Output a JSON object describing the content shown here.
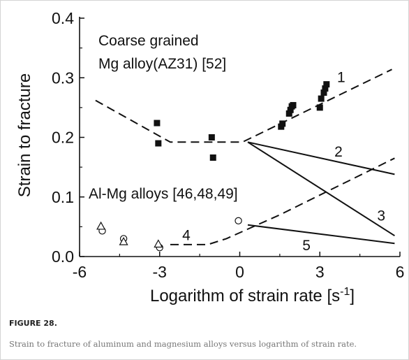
{
  "figure": {
    "label": "FIGURE 28.",
    "caption": "Strain to fracture of aluminum and magnesium alloys versus logarithm of strain rate."
  },
  "chart_data": {
    "type": "scatter",
    "xlabel_text": "Logarithm of strain rate [s",
    "xlabel_sup": "-1",
    "xlabel_end": "]",
    "ylabel": "Strain to fracture",
    "xlim": [
      -6,
      6
    ],
    "ylim": [
      0,
      0.4
    ],
    "x_ticks": [
      -6,
      -3,
      0,
      3,
      6
    ],
    "x_tick_labels": [
      "-6",
      "-3",
      "0",
      "3",
      "6"
    ],
    "y_ticks": [
      0,
      0.1,
      0.2,
      0.3,
      0.4
    ],
    "y_tick_labels": [
      "0.0",
      "0.1",
      "0.2",
      "0.3",
      "0.4"
    ],
    "grid": false,
    "annotations": {
      "mg_line1": "Coarse grained",
      "mg_line2": "Mg alloy(AZ31) [52]",
      "al": "Al-Mg  alloys [46,48,49]"
    },
    "series": [
      {
        "group": "Mg alloy AZ31",
        "marker": "filled-square",
        "points": [
          [
            -3.1,
            0.224
          ],
          [
            -3.05,
            0.19
          ],
          [
            -1.05,
            0.2
          ],
          [
            -1.0,
            0.166
          ],
          [
            1.55,
            0.218
          ],
          [
            1.6,
            0.223
          ],
          [
            1.85,
            0.24
          ],
          [
            1.9,
            0.246
          ],
          [
            1.95,
            0.252
          ],
          [
            2.0,
            0.254
          ],
          [
            3.0,
            0.25
          ],
          [
            3.05,
            0.265
          ],
          [
            3.15,
            0.275
          ],
          [
            3.2,
            0.282
          ],
          [
            3.25,
            0.289
          ]
        ]
      },
      {
        "group": "Al-Mg alloys",
        "marker": "open-circle",
        "points": [
          [
            -5.15,
            0.043
          ],
          [
            -4.35,
            0.03
          ],
          [
            -3.0,
            0.015
          ],
          [
            -0.05,
            0.06
          ]
        ]
      },
      {
        "group": "Al-Mg alloys",
        "marker": "open-triangle",
        "points": [
          [
            -5.2,
            0.051
          ],
          [
            -4.35,
            0.025
          ],
          [
            -3.05,
            0.021
          ]
        ]
      }
    ],
    "curves": [
      {
        "label": "1",
        "style": "dashed",
        "points": [
          [
            -5.4,
            0.262
          ],
          [
            -2.6,
            0.192
          ],
          [
            0.1,
            0.192
          ],
          [
            5.7,
            0.314
          ]
        ],
        "label_at": [
          3.8,
          0.302
        ]
      },
      {
        "label": "2",
        "style": "solid",
        "points": [
          [
            0.3,
            0.192
          ],
          [
            5.8,
            0.138
          ]
        ],
        "label_at": [
          3.7,
          0.177
        ]
      },
      {
        "label": "3",
        "style": "solid",
        "points": [
          [
            0.3,
            0.192
          ],
          [
            5.8,
            0.035
          ]
        ],
        "label_at": [
          5.3,
          0.07
        ]
      },
      {
        "label": "4",
        "style": "dashed",
        "points": [
          [
            -2.6,
            0.02
          ],
          [
            -1.2,
            0.02
          ],
          [
            -0.5,
            0.03
          ],
          [
            1.5,
            0.07
          ],
          [
            5.8,
            0.165
          ]
        ],
        "label_at": [
          -2.0,
          0.037
        ]
      },
      {
        "label": "5",
        "style": "solid",
        "points": [
          [
            0.3,
            0.053
          ],
          [
            5.8,
            0.022
          ]
        ],
        "label_at": [
          2.5,
          0.02
        ]
      }
    ]
  }
}
